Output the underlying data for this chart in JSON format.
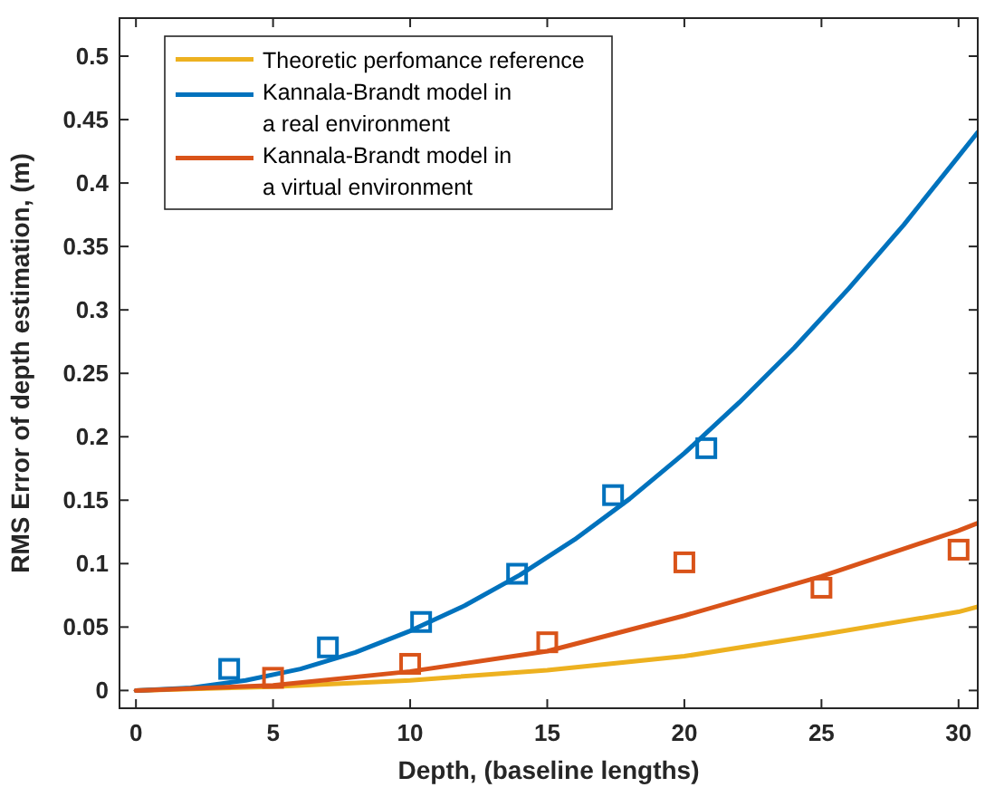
{
  "chart_data": {
    "type": "line",
    "xlabel": "Depth, (baseline lengths)",
    "ylabel": "RMS Error of depth estimation, (m)",
    "xlim": [
      -0.6,
      30.7
    ],
    "ylim": [
      -0.014,
      0.53
    ],
    "xticks": [
      0,
      5,
      10,
      15,
      20,
      25,
      30
    ],
    "yticks": [
      0,
      0.05,
      0.1,
      0.15,
      0.2,
      0.25,
      0.3,
      0.35,
      0.4,
      0.45,
      0.5
    ],
    "grid": false,
    "legend": "top left",
    "line_style": "solid",
    "series": [
      {
        "name": "Theoretic perfomance reference",
        "color": "#edb120",
        "marker": "none",
        "x": [
          0,
          5,
          10,
          15,
          20,
          25,
          30,
          30.7
        ],
        "values": [
          0,
          0.003,
          0.008,
          0.016,
          0.027,
          0.044,
          0.062,
          0.066
        ]
      },
      {
        "name": "Kannala-Brandt model in\na real environment",
        "color": "#0072bd",
        "marker": "none",
        "x": [
          0,
          2,
          4,
          6,
          8,
          10,
          12,
          14,
          16,
          18,
          20,
          22,
          24,
          26,
          28,
          30,
          30.7
        ],
        "values": [
          0,
          0.002,
          0.008,
          0.017,
          0.03,
          0.047,
          0.067,
          0.091,
          0.119,
          0.151,
          0.187,
          0.227,
          0.27,
          0.317,
          0.367,
          0.421,
          0.44
        ]
      },
      {
        "name": "Kannala-Brandt model in\na virtual environment",
        "color": "#d95319",
        "marker": "none",
        "x": [
          0,
          5,
          10,
          15,
          20,
          25,
          30,
          30.7
        ],
        "values": [
          0,
          0.004,
          0.015,
          0.031,
          0.059,
          0.09,
          0.126,
          0.132
        ]
      },
      {
        "type": "scatter",
        "color": "#0072bd",
        "marker": "square",
        "x": [
          3.4,
          7,
          10.4,
          13.9,
          17.4,
          20.8
        ],
        "values": [
          0.017,
          0.034,
          0.054,
          0.092,
          0.154,
          0.191
        ]
      },
      {
        "type": "scatter",
        "color": "#d95319",
        "marker": "square",
        "x": [
          5,
          10,
          15,
          20,
          25,
          30
        ],
        "values": [
          0.01,
          0.021,
          0.038,
          0.101,
          0.081,
          0.111
        ]
      }
    ]
  }
}
